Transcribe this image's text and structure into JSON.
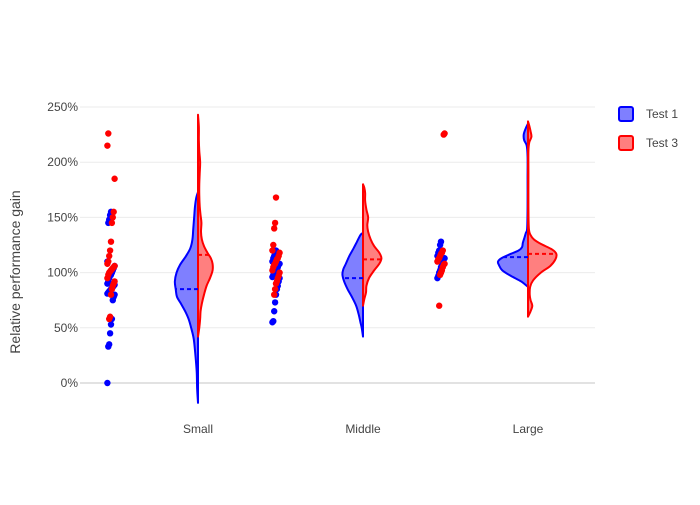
{
  "chart_data": {
    "type": "violin",
    "title": "",
    "xlabel": "",
    "ylabel": "Relative performance gain",
    "categories": [
      "Small",
      "Middle",
      "Large"
    ],
    "y_ticks": [
      {
        "value": 0,
        "label": "0%"
      },
      {
        "value": 50,
        "label": "50%"
      },
      {
        "value": 100,
        "label": "100%"
      },
      {
        "value": 150,
        "label": "150%"
      },
      {
        "value": 200,
        "label": "200%"
      },
      {
        "value": 250,
        "label": "250%"
      }
    ],
    "ylim": [
      -20,
      250
    ],
    "grid": true,
    "legend_position": "top-right",
    "series": [
      {
        "name": "Test 1",
        "side": "negative",
        "line_color": "#0000ff",
        "fill_color": "#7f7fff",
        "groups": [
          {
            "category": "Small",
            "mean": 85,
            "points": [
              0,
              33,
              35,
              45,
              53,
              58,
              75,
              78,
              80,
              81,
              82,
              83,
              84,
              85,
              86,
              87,
              88,
              89,
              90,
              92,
              95,
              97,
              98,
              100,
              102,
              104,
              106,
              110,
              145,
              148,
              152,
              155
            ],
            "density": [
              [
                -18,
                0
              ],
              [
                -5,
                2
              ],
              [
                10,
                3
              ],
              [
                25,
                6
              ],
              [
                40,
                10
              ],
              [
                50,
                16
              ],
              [
                58,
                22
              ],
              [
                65,
                30
              ],
              [
                72,
                40
              ],
              [
                78,
                49
              ],
              [
                85,
                52
              ],
              [
                92,
                54
              ],
              [
                100,
                50
              ],
              [
                107,
                42
              ],
              [
                115,
                28
              ],
              [
                122,
                18
              ],
              [
                130,
                13
              ],
              [
                140,
                11
              ],
              [
                150,
                9
              ],
              [
                160,
                7
              ],
              [
                168,
                4
              ],
              [
                173,
                0
              ]
            ]
          },
          {
            "category": "Middle",
            "mean": 95,
            "points": [
              55,
              56,
              65,
              73,
              80,
              85,
              88,
              92,
              95,
              96,
              98,
              100,
              101,
              102,
              103,
              105,
              107,
              108,
              110,
              113,
              115,
              118,
              120
            ],
            "density": [
              [
                42,
                0
              ],
              [
                50,
                3
              ],
              [
                55,
                6
              ],
              [
                62,
                10
              ],
              [
                70,
                16
              ],
              [
                78,
                26
              ],
              [
                85,
                36
              ],
              [
                92,
                44
              ],
              [
                98,
                48
              ],
              [
                103,
                46
              ],
              [
                108,
                40
              ],
              [
                115,
                32
              ],
              [
                122,
                22
              ],
              [
                128,
                14
              ],
              [
                134,
                6
              ],
              [
                136,
                0
              ]
            ]
          },
          {
            "category": "Large",
            "mean": 114,
            "points": [
              95,
              97,
              100,
              102,
              105,
              108,
              110,
              112,
              113,
              115,
              118,
              120,
              125,
              128
            ],
            "density": [
              [
                87,
                0
              ],
              [
                92,
                16
              ],
              [
                97,
                40
              ],
              [
                102,
                60
              ],
              [
                107,
                68
              ],
              [
                110,
                70
              ],
              [
                113,
                62
              ],
              [
                117,
                40
              ],
              [
                120,
                22
              ],
              [
                123,
                14
              ],
              [
                127,
                12
              ],
              [
                132,
                8
              ],
              [
                136,
                5
              ],
              [
                140,
                2
              ],
              [
                160,
                1
              ],
              [
                185,
                1
              ],
              [
                205,
                1
              ],
              [
                215,
                3
              ],
              [
                220,
                9
              ],
              [
                225,
                10
              ],
              [
                230,
                6
              ],
              [
                235,
                0
              ]
            ]
          }
        ]
      },
      {
        "name": "Test 3",
        "side": "positive",
        "line_color": "#ff0000",
        "fill_color": "#ff7f7f",
        "groups": [
          {
            "category": "Small",
            "mean": 116,
            "points": [
              58,
              60,
              80,
              85,
              88,
              90,
              92,
              95,
              98,
              100,
              101,
              102,
              103,
              104,
              105,
              106,
              108,
              110,
              115,
              120,
              128,
              145,
              150,
              155,
              185,
              215,
              226
            ],
            "density": [
              [
                42,
                0
              ],
              [
                50,
                3
              ],
              [
                58,
                5
              ],
              [
                65,
                6
              ],
              [
                72,
                9
              ],
              [
                80,
                14
              ],
              [
                88,
                20
              ],
              [
                95,
                28
              ],
              [
                102,
                34
              ],
              [
                108,
                34
              ],
              [
                113,
                30
              ],
              [
                118,
                22
              ],
              [
                124,
                14
              ],
              [
                130,
                9
              ],
              [
                137,
                7
              ],
              [
                145,
                8
              ],
              [
                152,
                6
              ],
              [
                160,
                4
              ],
              [
                170,
                3
              ],
              [
                180,
                3
              ],
              [
                190,
                4
              ],
              [
                200,
                5
              ],
              [
                210,
                3
              ],
              [
                220,
                2
              ],
              [
                232,
                2
              ],
              [
                243,
                0
              ]
            ]
          },
          {
            "category": "Middle",
            "mean": 112,
            "points": [
              80,
              85,
              90,
              92,
              95,
              97,
              100,
              102,
              105,
              107,
              108,
              110,
              112,
              113,
              115,
              118,
              120,
              125,
              140,
              145,
              168
            ],
            "density": [
              [
                70,
                0
              ],
              [
                76,
                3
              ],
              [
                82,
                7
              ],
              [
                88,
                8
              ],
              [
                95,
                14
              ],
              [
                102,
                26
              ],
              [
                108,
                38
              ],
              [
                113,
                43
              ],
              [
                118,
                38
              ],
              [
                124,
                26
              ],
              [
                130,
                18
              ],
              [
                137,
                12
              ],
              [
                143,
                10
              ],
              [
                150,
                12
              ],
              [
                157,
                8
              ],
              [
                165,
                5
              ],
              [
                172,
                5
              ],
              [
                177,
                3
              ],
              [
                180,
                0
              ]
            ]
          },
          {
            "category": "Large",
            "mean": 117,
            "points": [
              70,
              98,
              100,
              102,
              105,
              107,
              108,
              110,
              112,
              113,
              115,
              117,
              118,
              120,
              225,
              226
            ],
            "density": [
              [
                60,
                0
              ],
              [
                65,
                6
              ],
              [
                70,
                10
              ],
              [
                75,
                6
              ],
              [
                80,
                4
              ],
              [
                87,
                5
              ],
              [
                93,
                12
              ],
              [
                100,
                30
              ],
              [
                106,
                52
              ],
              [
                112,
                64
              ],
              [
                117,
                66
              ],
              [
                121,
                56
              ],
              [
                126,
                30
              ],
              [
                130,
                14
              ],
              [
                134,
                6
              ],
              [
                140,
                2
              ],
              [
                160,
                1
              ],
              [
                190,
                1
              ],
              [
                210,
                1
              ],
              [
                218,
                3
              ],
              [
                223,
                8
              ],
              [
                228,
                6
              ],
              [
                233,
                3
              ],
              [
                237,
                0
              ]
            ]
          }
        ]
      }
    ]
  }
}
